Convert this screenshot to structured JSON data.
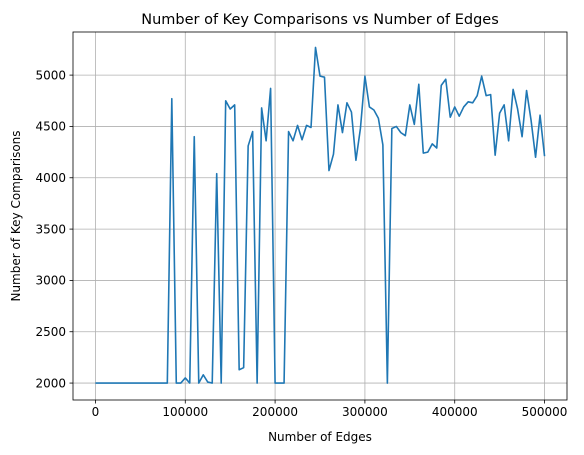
{
  "chart_data": {
    "type": "line",
    "title": "Number of Key Comparisons vs Number of Edges",
    "xlabel": "Number of Edges",
    "ylabel": "Number of Key Comparisons",
    "xlim": [
      -25000,
      525000
    ],
    "ylim": [
      1835,
      5420
    ],
    "xticks": [
      0,
      100000,
      200000,
      300000,
      400000,
      500000
    ],
    "xtick_labels": [
      "0",
      "100000",
      "200000",
      "300000",
      "400000",
      "500000"
    ],
    "yticks": [
      2000,
      2500,
      3000,
      3500,
      4000,
      4500,
      5000
    ],
    "ytick_labels": [
      "2000",
      "2500",
      "3000",
      "3500",
      "4000",
      "4500",
      "5000"
    ],
    "grid": true,
    "color": "#1f77b4",
    "series": [
      {
        "x": [
          0,
          5000,
          10000,
          15000,
          20000,
          25000,
          30000,
          35000,
          40000,
          45000,
          50000,
          55000,
          60000,
          65000,
          70000,
          75000,
          80000,
          85000,
          90000,
          95000,
          100000,
          105000,
          110000,
          115000,
          120000,
          125000,
          130000,
          135000,
          140000,
          145000,
          150000,
          155000,
          160000,
          165000,
          170000,
          175000,
          180000,
          185000,
          190000,
          195000,
          200000,
          205000,
          210000,
          215000,
          220000,
          225000,
          230000,
          235000,
          240000,
          245000,
          250000,
          255000,
          260000,
          265000,
          270000,
          275000,
          280000,
          285000,
          290000,
          295000,
          300000,
          305000,
          310000,
          315000,
          320000,
          325000,
          330000,
          335000,
          340000,
          345000,
          350000,
          355000,
          360000,
          365000,
          370000,
          375000,
          380000,
          385000,
          390000,
          395000,
          400000,
          405000,
          410000,
          415000,
          420000,
          425000,
          430000,
          435000,
          440000,
          445000,
          450000,
          455000,
          460000,
          465000,
          470000,
          475000,
          480000,
          485000,
          490000,
          495000,
          500000
        ],
        "values": [
          2000,
          2000,
          2000,
          2000,
          2000,
          2000,
          2000,
          2000,
          2000,
          2000,
          2000,
          2000,
          2000,
          2000,
          2000,
          2000,
          2000,
          4770,
          2000,
          2000,
          2050,
          2000,
          4400,
          2000,
          2080,
          2010,
          2000,
          4040,
          2000,
          4750,
          4670,
          4710,
          2130,
          2150,
          4310,
          4450,
          2000,
          4680,
          4360,
          4870,
          2000,
          2000,
          2000,
          4450,
          4360,
          4510,
          4370,
          4510,
          4490,
          5270,
          4990,
          4980,
          4070,
          4230,
          4710,
          4440,
          4730,
          4640,
          4170,
          4480,
          4990,
          4690,
          4660,
          4580,
          4320,
          2000,
          4480,
          4500,
          4440,
          4410,
          4710,
          4520,
          4910,
          4240,
          4250,
          4330,
          4290,
          4900,
          4960,
          4590,
          4690,
          4600,
          4690,
          4740,
          4730,
          4800,
          4990,
          4800,
          4810,
          4220,
          4630,
          4710,
          4360,
          4860,
          4670,
          4400,
          4850,
          4560,
          4200,
          4610,
          4210
        ]
      }
    ]
  }
}
